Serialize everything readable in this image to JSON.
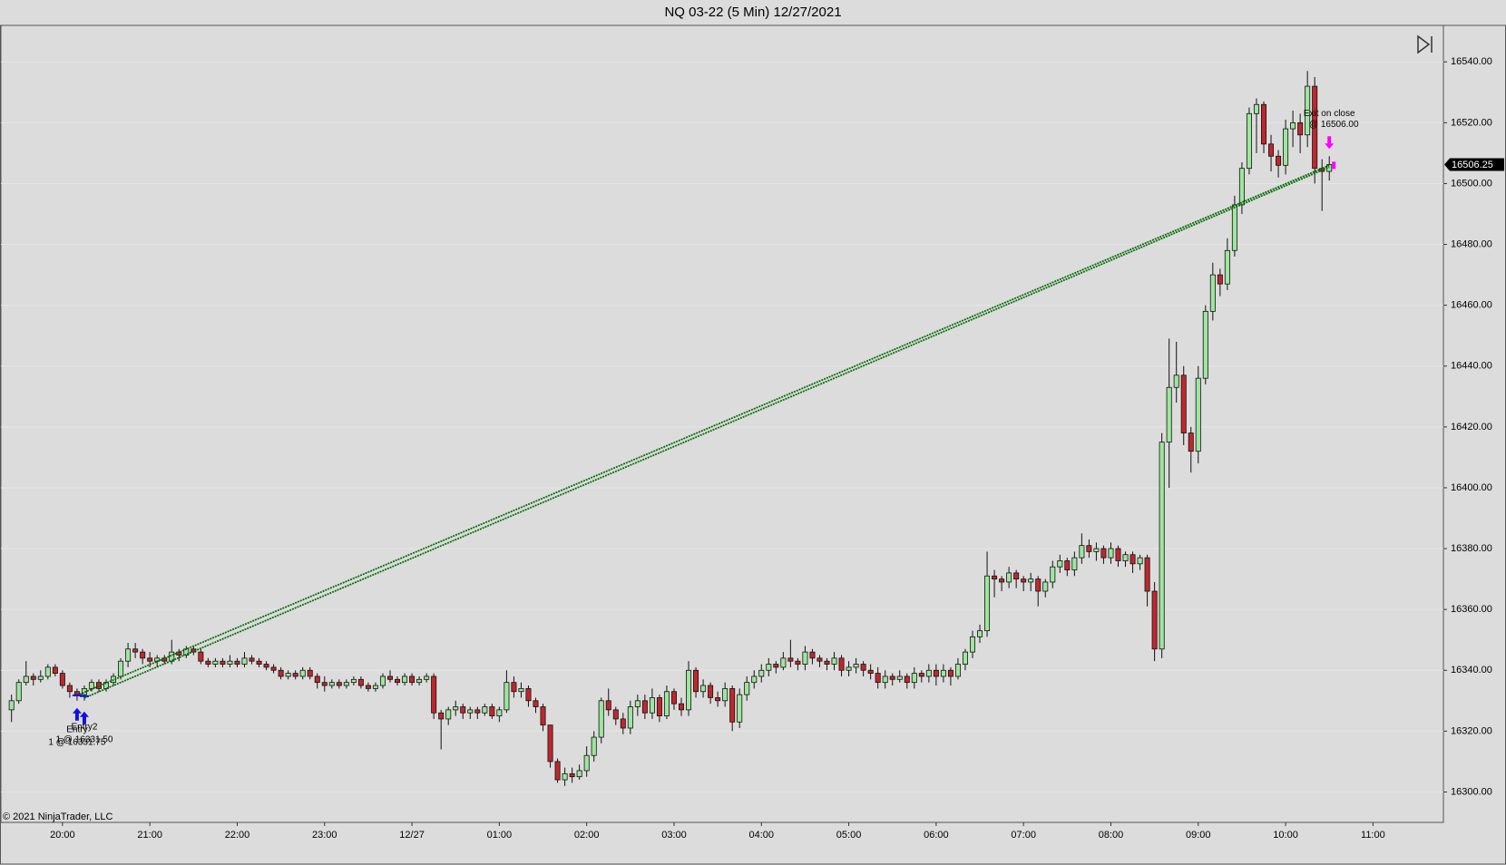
{
  "chart_data": {
    "type": "candlestick",
    "title": "NQ 03-22 (5 Min)  12/27/2021",
    "copyright": "© 2021 NinjaTrader, LLC",
    "up_color": "#9ee69e",
    "down_color": "#c0272d",
    "grid": true,
    "x": [
      "19:25",
      "19:30",
      "19:35",
      "19:40",
      "19:45",
      "19:50",
      "19:55",
      "20:00",
      "20:05",
      "20:10",
      "20:15",
      "20:20",
      "20:25",
      "20:30",
      "20:35",
      "20:40",
      "20:45",
      "20:50",
      "20:55",
      "21:00",
      "21:05",
      "21:10",
      "21:15",
      "21:20",
      "21:25",
      "21:30",
      "21:35",
      "21:40",
      "21:45",
      "21:50",
      "21:55",
      "22:00",
      "22:05",
      "22:10",
      "22:15",
      "22:20",
      "22:25",
      "22:30",
      "22:35",
      "22:40",
      "22:45",
      "22:50",
      "22:55",
      "23:00",
      "23:05",
      "23:10",
      "23:15",
      "23:20",
      "23:25",
      "23:30",
      "23:35",
      "23:40",
      "23:45",
      "23:50",
      "23:55",
      "00:00",
      "00:05",
      "00:10",
      "00:15",
      "00:20",
      "00:25",
      "00:30",
      "00:35",
      "00:40",
      "00:45",
      "00:50",
      "00:55",
      "01:00",
      "01:05",
      "01:10",
      "01:15",
      "01:20",
      "01:25",
      "01:30",
      "01:35",
      "01:40",
      "01:45",
      "01:50",
      "01:55",
      "02:00",
      "02:05",
      "02:10",
      "02:15",
      "02:20",
      "02:25",
      "02:30",
      "02:35",
      "02:40",
      "02:45",
      "02:50",
      "02:55",
      "03:00",
      "03:05",
      "03:10",
      "03:15",
      "03:20",
      "03:25",
      "03:30",
      "03:35",
      "03:40",
      "03:45",
      "03:50",
      "03:55",
      "04:00",
      "04:05",
      "04:10",
      "04:15",
      "04:20",
      "04:25",
      "04:30",
      "04:35",
      "04:40",
      "04:45",
      "04:50",
      "04:55",
      "05:00",
      "05:05",
      "05:10",
      "05:15",
      "05:20",
      "05:25",
      "05:30",
      "05:35",
      "05:40",
      "05:45",
      "05:50",
      "05:55",
      "06:00",
      "06:05",
      "06:10",
      "06:15",
      "06:20",
      "06:25",
      "06:30",
      "06:35",
      "06:40",
      "06:45",
      "06:50",
      "06:55",
      "07:00",
      "07:05",
      "07:10",
      "07:15",
      "07:20",
      "07:25",
      "07:30",
      "07:35",
      "07:40",
      "07:45",
      "07:50",
      "07:55",
      "08:00",
      "08:05",
      "08:10",
      "08:15",
      "08:20",
      "08:25",
      "08:30",
      "08:35",
      "08:40",
      "08:45",
      "08:50",
      "08:55",
      "09:00",
      "09:05",
      "09:10",
      "09:15",
      "09:20",
      "09:25",
      "09:30",
      "09:35",
      "09:40",
      "09:45",
      "09:50",
      "09:55",
      "10:00",
      "10:05",
      "10:10",
      "10:15",
      "10:20",
      "10:25",
      "10:30"
    ],
    "open": [
      16327,
      16330,
      16336,
      16338,
      16337,
      16338,
      16341,
      16339,
      16335,
      16333,
      16332,
      16334,
      16336,
      16334,
      16336,
      16338,
      16343,
      16347,
      16346,
      16344,
      16343,
      16344,
      16343,
      16346,
      16345,
      16347,
      16346,
      16343,
      16342,
      16343,
      16342,
      16343,
      16342,
      16344,
      16343,
      16342,
      16341,
      16340,
      16338,
      16339,
      16338,
      16340,
      16338,
      16336,
      16335,
      16336,
      16335,
      16336,
      16337,
      16335,
      16334,
      16335,
      16338,
      16337,
      16336,
      16338,
      16336,
      16337,
      16338,
      16326,
      16324,
      16327,
      16328,
      16326,
      16327,
      16326,
      16328,
      16325,
      16327,
      16336,
      16333,
      16334,
      16330,
      16328,
      16322,
      16310,
      16304,
      16306,
      16305,
      16307,
      16312,
      16318,
      16330,
      16327,
      16324,
      16321,
      16328,
      16330,
      16326,
      16331,
      16325,
      16333,
      16329,
      16327,
      16340,
      16333,
      16335,
      16331,
      16330,
      16334,
      16323,
      16332,
      16336,
      16338,
      16340,
      16342,
      16341,
      16344,
      16343,
      16342,
      16346,
      16344,
      16343,
      16342,
      16344,
      16340,
      16341,
      16342,
      16340,
      16339,
      16336,
      16338,
      16337,
      16338,
      16336,
      16339,
      16338,
      16340,
      16338,
      16340,
      16338,
      16342,
      16346,
      16351,
      16353,
      16371,
      16370,
      16369,
      16372,
      16370,
      16369,
      16370,
      16366,
      16369,
      16374,
      16376,
      16373,
      16377,
      16381,
      16379,
      16380,
      16377,
      16380,
      16376,
      16378,
      16375,
      16377,
      16366,
      16347,
      16415,
      16433,
      16437,
      16418,
      16412,
      16436,
      16458,
      16470,
      16467,
      16478,
      16493,
      16505,
      16523,
      16526,
      16513,
      16509,
      16506,
      16518,
      16520,
      16516,
      16532,
      16505,
      16504
    ],
    "high": [
      16332,
      16337,
      16343,
      16339,
      16340,
      16342,
      16342,
      16340,
      16336,
      16334,
      16335,
      16337,
      16337,
      16337,
      16339,
      16344,
      16349,
      16349,
      16347,
      16346,
      16345,
      16345,
      16350,
      16347,
      16348,
      16348,
      16347,
      16344,
      16344,
      16344,
      16345,
      16344,
      16346,
      16345,
      16344,
      16343,
      16342,
      16341,
      16340,
      16340,
      16341,
      16341,
      16339,
      16338,
      16337,
      16337,
      16337,
      16338,
      16338,
      16336,
      16336,
      16339,
      16340,
      16338,
      16339,
      16339,
      16338,
      16339,
      16339,
      16327,
      16328,
      16330,
      16329,
      16328,
      16328,
      16329,
      16329,
      16328,
      16340,
      16338,
      16336,
      16335,
      16331,
      16329,
      16322,
      16311,
      16308,
      16308,
      16309,
      16315,
      16320,
      16331,
      16334,
      16328,
      16326,
      16330,
      16332,
      16332,
      16334,
      16332,
      16335,
      16334,
      16331,
      16343,
      16341,
      16337,
      16336,
      16333,
      16336,
      16335,
      16334,
      16338,
      16340,
      16342,
      16344,
      16343,
      16346,
      16350,
      16344,
      16348,
      16347,
      16345,
      16344,
      16346,
      16345,
      16343,
      16344,
      16343,
      16342,
      16341,
      16340,
      16339,
      16340,
      16339,
      16341,
      16340,
      16342,
      16342,
      16342,
      16341,
      16344,
      16347,
      16353,
      16355,
      16379,
      16373,
      16371,
      16374,
      16373,
      16371,
      16372,
      16371,
      16370,
      16376,
      16378,
      16377,
      16379,
      16385,
      16383,
      16382,
      16381,
      16382,
      16381,
      16379,
      16379,
      16378,
      16378,
      16369,
      16418,
      16449,
      16448,
      16440,
      16420,
      16440,
      16460,
      16474,
      16472,
      16482,
      16496,
      16507,
      16525,
      16528,
      16527,
      16516,
      16511,
      16521,
      16524,
      16523,
      16537,
      16535,
      16508,
      16509
    ],
    "low": [
      16323,
      16329,
      16335,
      16335,
      16336,
      16337,
      16338,
      16334,
      16331,
      16330,
      16330,
      16333,
      16333,
      16333,
      16335,
      16337,
      16341,
      16344,
      16342,
      16341,
      16341,
      16342,
      16342,
      16343,
      16344,
      16345,
      16342,
      16341,
      16341,
      16341,
      16341,
      16341,
      16341,
      16342,
      16341,
      16340,
      16339,
      16337,
      16337,
      16337,
      16337,
      16337,
      16334,
      16333,
      16334,
      16334,
      16334,
      16335,
      16334,
      16333,
      16333,
      16334,
      16336,
      16335,
      16335,
      16335,
      16335,
      16336,
      16324,
      16314,
      16322,
      16325,
      16324,
      16324,
      16324,
      16325,
      16324,
      16323,
      16326,
      16331,
      16331,
      16328,
      16326,
      16320,
      16308,
      16303,
      16302,
      16303,
      16304,
      16305,
      16310,
      16316,
      16325,
      16322,
      16319,
      16319,
      16325,
      16324,
      16324,
      16323,
      16324,
      16327,
      16325,
      16325,
      16331,
      16331,
      16329,
      16328,
      16328,
      16320,
      16321,
      16330,
      16334,
      16336,
      16338,
      16339,
      16340,
      16341,
      16340,
      16340,
      16342,
      16341,
      16340,
      16340,
      16338,
      16338,
      16339,
      16338,
      16337,
      16334,
      16334,
      16335,
      16336,
      16334,
      16334,
      16336,
      16336,
      16335,
      16336,
      16335,
      16337,
      16340,
      16344,
      16349,
      16351,
      16364,
      16366,
      16367,
      16367,
      16366,
      16366,
      16361,
      16364,
      16367,
      16372,
      16371,
      16371,
      16375,
      16377,
      16376,
      16375,
      16375,
      16374,
      16374,
      16372,
      16373,
      16361,
      16343,
      16344,
      16400,
      16428,
      16414,
      16405,
      16408,
      16434,
      16455,
      16463,
      16465,
      16476,
      16490,
      16503,
      16510,
      16510,
      16504,
      16502,
      16503,
      16512,
      16510,
      16512,
      16500,
      16491,
      16501
    ],
    "close": [
      16330,
      16336,
      16338,
      16337,
      16338,
      16341,
      16339,
      16335,
      16333,
      16332,
      16334,
      16336,
      16334,
      16336,
      16338,
      16343,
      16347,
      16346,
      16344,
      16343,
      16344,
      16343,
      16346,
      16345,
      16347,
      16346,
      16343,
      16342,
      16343,
      16342,
      16343,
      16342,
      16344,
      16343,
      16342,
      16341,
      16340,
      16338,
      16339,
      16338,
      16340,
      16338,
      16336,
      16335,
      16336,
      16335,
      16336,
      16337,
      16335,
      16334,
      16335,
      16338,
      16337,
      16336,
      16338,
      16336,
      16337,
      16338,
      16326,
      16324,
      16327,
      16328,
      16326,
      16327,
      16326,
      16328,
      16325,
      16327,
      16336,
      16333,
      16334,
      16330,
      16328,
      16322,
      16310,
      16304,
      16306,
      16305,
      16307,
      16312,
      16318,
      16330,
      16327,
      16324,
      16321,
      16328,
      16330,
      16326,
      16331,
      16325,
      16333,
      16329,
      16327,
      16340,
      16333,
      16335,
      16331,
      16330,
      16334,
      16323,
      16332,
      16336,
      16338,
      16340,
      16342,
      16341,
      16344,
      16343,
      16342,
      16346,
      16344,
      16343,
      16342,
      16344,
      16340,
      16341,
      16342,
      16340,
      16339,
      16336,
      16338,
      16337,
      16338,
      16336,
      16339,
      16338,
      16340,
      16338,
      16340,
      16338,
      16342,
      16346,
      16351,
      16353,
      16371,
      16370,
      16369,
      16372,
      16370,
      16369,
      16370,
      16366,
      16369,
      16374,
      16376,
      16373,
      16377,
      16381,
      16379,
      16380,
      16377,
      16380,
      16376,
      16378,
      16375,
      16377,
      16366,
      16347,
      16415,
      16433,
      16437,
      16418,
      16412,
      16436,
      16458,
      16470,
      16467,
      16478,
      16493,
      16505,
      16523,
      16526,
      16513,
      16509,
      16506,
      16518,
      16520,
      16516,
      16532,
      16505,
      16504,
      16506.25
    ],
    "ylim": [
      16290,
      16552
    ],
    "yticks": [
      {
        "value": 16300,
        "label": "16300.00"
      },
      {
        "value": 16320,
        "label": "16320.00"
      },
      {
        "value": 16340,
        "label": "16340.00"
      },
      {
        "value": 16360,
        "label": "16360.00"
      },
      {
        "value": 16380,
        "label": "16380.00"
      },
      {
        "value": 16400,
        "label": "16400.00"
      },
      {
        "value": 16420,
        "label": "16420.00"
      },
      {
        "value": 16440,
        "label": "16440.00"
      },
      {
        "value": 16460,
        "label": "16460.00"
      },
      {
        "value": 16480,
        "label": "16480.00"
      },
      {
        "value": 16500,
        "label": "16500.00"
      },
      {
        "value": 16520,
        "label": "16520.00"
      },
      {
        "value": 16540,
        "label": "16540.00"
      }
    ],
    "xticks": [
      "20:00",
      "21:00",
      "22:00",
      "23:00",
      {
        "value": "00:00",
        "label": "12/27"
      },
      "01:00",
      "02:00",
      "03:00",
      "04:00",
      "05:00",
      "06:00",
      "07:00",
      "08:00",
      "09:00",
      "10:00",
      "11:00"
    ],
    "entries": [
      {
        "name": "Entry",
        "x": "20:10",
        "price": 16331.75,
        "label": "1 @ 16331.75"
      },
      {
        "name": "Entry2",
        "x": "20:15",
        "price": 16331.5,
        "label": "1 @ 16331.50"
      }
    ],
    "exit": {
      "name": "Exit on close",
      "x": "10:30",
      "price": 16506,
      "label": "@ 16506.00"
    }
  }
}
